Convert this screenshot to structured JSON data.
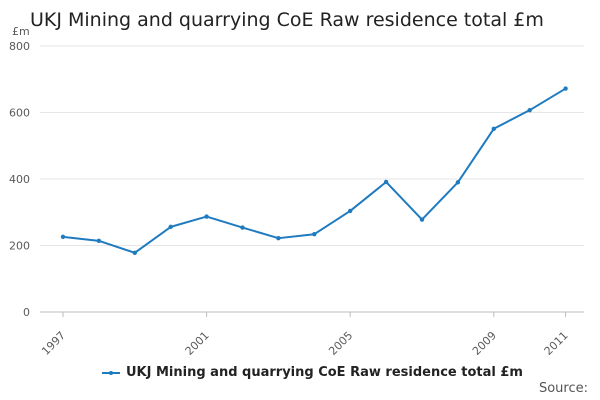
{
  "chart_data": {
    "type": "line",
    "title": "UKJ Mining and quarrying CoE Raw residence total £m",
    "ylabel": "£m",
    "xlabel": "",
    "ylim": [
      0,
      800
    ],
    "yticks": [
      0,
      200,
      400,
      600,
      800
    ],
    "xticks": [
      1997,
      2001,
      2005,
      2009,
      2011
    ],
    "grid": true,
    "legend_position": "bottom",
    "series": [
      {
        "name": "UKJ Mining and quarrying CoE Raw residence total £m",
        "color": "#1f7bbf",
        "x": [
          1997,
          1998,
          1999,
          2000,
          2001,
          2002,
          2003,
          2004,
          2005,
          2006,
          2007,
          2008,
          2009,
          2010,
          2011
        ],
        "values": [
          226,
          214,
          178,
          256,
          287,
          254,
          222,
          234,
          304,
          391,
          278,
          390,
          551,
          607,
          672
        ]
      }
    ]
  },
  "source_label": "Source:"
}
